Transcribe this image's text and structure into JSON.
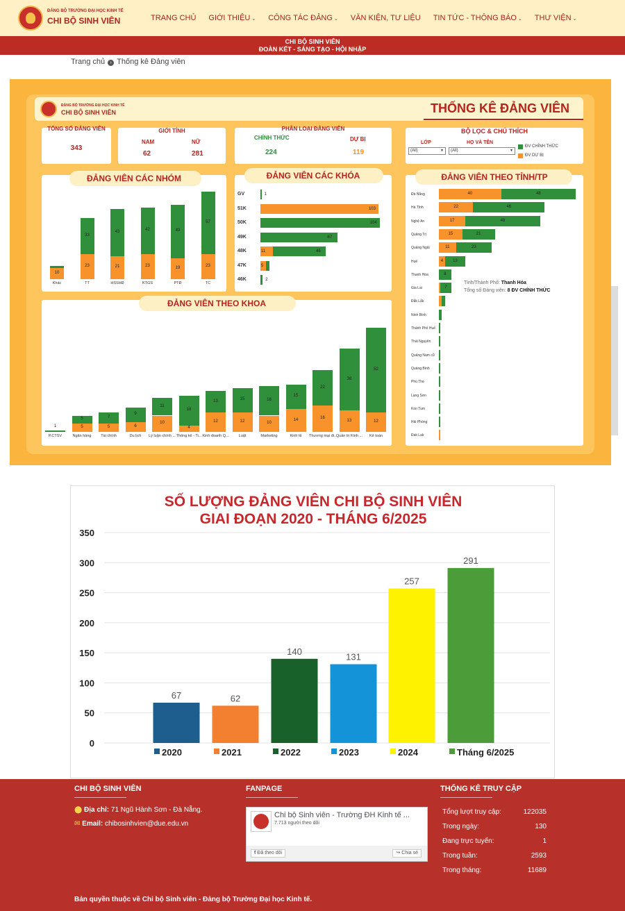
{
  "header": {
    "logo_small": "ĐẢNG BỘ TRƯỜNG ĐẠI HỌC KINH TẾ",
    "logo_big": "CHI BỘ SINH VIÊN",
    "nav": [
      "TRANG CHỦ",
      "GIỚI THIỆU",
      "CÔNG TÁC ĐẢNG",
      "VĂN KIỆN, TƯ LIỆU",
      "TIN TỨC - THÔNG BÁO",
      "THƯ VIỆN"
    ],
    "nav_dropdown": [
      false,
      true,
      true,
      false,
      true,
      true
    ],
    "ribbon_line1": "CHI BỘ SINH VIÊN",
    "ribbon_line2": "ĐOÀN KẾT - SÁNG TẠO - HỘI NHẬP"
  },
  "breadcrumb": {
    "home": "Trang chủ",
    "current": "Thống kê Đảng viên"
  },
  "dashboard": {
    "logo_small": "ĐẢNG BỘ TRƯỜNG ĐẠI HỌC KINH TẾ",
    "logo_big": "CHI BỘ SINH VIÊN",
    "title": "THỐNG KÊ ĐẢNG VIÊN",
    "total_label": "TỔNG SỐ ĐẢNG VIÊN",
    "total_value": "343",
    "gender_label": "GIỚI TÍNH",
    "male_label": "NAM",
    "male_value": "62",
    "female_label": "NỮ",
    "female_value": "281",
    "type_label": "PHÂN LOẠI ĐẢNG VIÊN",
    "official_label": "CHÍNH THỨC",
    "official_value": "224",
    "probation_label": "DỰ BỊ",
    "probation_value": "119",
    "filter_title": "BỘ LỌC & CHÚ THÍCH",
    "filter_class_label": "LỚP",
    "filter_name_label": "HỌ VÀ TÊN",
    "filter_all": "(All)",
    "legend_official": "ĐV CHÍNH THỨC",
    "legend_probation": "ĐV DỰ BỊ",
    "groups_title": "ĐẢNG VIÊN CÁC NHÓM",
    "courses_title": "ĐẢNG VIÊN CÁC KHÓA",
    "province_title": "ĐẢNG VIÊN THEO TỈNH/TP",
    "faculty_title": "ĐẢNG VIÊN THEO KHOA",
    "tooltip_line1_label": "Tỉnh/Thành Phố:",
    "tooltip_line1_value": "Thanh Hóa",
    "tooltip_line2_label": "Tổng số Đảng viên:",
    "tooltip_line2_value": "8 ĐV CHÍNH THỨC",
    "colors": {
      "official": "#2f8f3a",
      "probation": "#f8922a",
      "title": "#b5241f"
    }
  },
  "chart_data": [
    {
      "type": "bar",
      "title": "ĐẢNG VIÊN CÁC NHÓM",
      "categories": [
        "Khác",
        "TT",
        "HSSHĐ",
        "KTGS",
        "PTĐ",
        "TC"
      ],
      "series": [
        {
          "name": "ĐV DỰ BỊ",
          "values": [
            10,
            23,
            21,
            23,
            19,
            23
          ]
        },
        {
          "name": "ĐV CHÍNH THỨC",
          "values": [
            2,
            33,
            43,
            42,
            49,
            57
          ]
        }
      ]
    },
    {
      "type": "bar",
      "title": "ĐẢNG VIÊN CÁC KHÓA",
      "categories": [
        "GV",
        "51K",
        "50K",
        "49K",
        "48K",
        "47K",
        "46K"
      ],
      "series": [
        {
          "name": "ĐV DỰ BỊ",
          "values": [
            0,
            103,
            0,
            0,
            11,
            5,
            0
          ]
        },
        {
          "name": "ĐV CHÍNH THỨC",
          "values": [
            1,
            0,
            104,
            67,
            46,
            3,
            2
          ]
        }
      ],
      "labels": [
        [
          "",
          "1"
        ],
        [
          "103",
          ""
        ],
        [
          "",
          "104"
        ],
        [
          "",
          "67"
        ],
        [
          "11",
          "46"
        ],
        [
          "5",
          ""
        ],
        [
          "",
          "2"
        ]
      ]
    },
    {
      "type": "bar",
      "title": "ĐẢNG VIÊN THEO TỈNH/TP",
      "categories": [
        "Đà Nẵng",
        "Hà Tĩnh",
        "Nghệ An",
        "Quảng Trị",
        "Quảng Ngãi",
        "Huế",
        "Thanh Hóa",
        "Gia Lai",
        "Đắk Lắk",
        "Ninh Bình",
        "Thành Phố Huế",
        "Thái Nguyên",
        "Quảng Nam cũ",
        "Quảng Bình",
        "Phú Thọ",
        "Lạng Sơn",
        "Kon Tum",
        "Hải Phòng",
        "Đak Lak"
      ],
      "series": [
        {
          "name": "ĐV DỰ BỊ",
          "values": [
            40,
            22,
            17,
            15,
            11,
            4,
            0,
            1,
            2,
            0,
            0,
            0,
            0,
            0,
            0,
            0,
            0,
            0,
            1
          ]
        },
        {
          "name": "ĐV CHÍNH THỨC",
          "values": [
            48,
            46,
            48,
            21,
            23,
            13,
            8,
            7,
            2,
            2,
            1,
            1,
            1,
            1,
            1,
            1,
            1,
            1,
            0
          ]
        }
      ],
      "labels": [
        [
          "40",
          "48"
        ],
        [
          "22",
          "46"
        ],
        [
          "17",
          "48"
        ],
        [
          "15",
          "21"
        ],
        [
          "11",
          "23"
        ],
        [
          "4",
          "13"
        ],
        [
          "",
          "8"
        ],
        [
          "",
          "7"
        ],
        [
          "",
          ""
        ],
        [
          "",
          ""
        ],
        [
          "",
          ""
        ],
        [
          "",
          ""
        ],
        [
          "",
          ""
        ],
        [
          "",
          ""
        ],
        [
          "",
          ""
        ],
        [
          "",
          ""
        ],
        [
          "",
          ""
        ],
        [
          "",
          ""
        ],
        [
          "",
          ""
        ]
      ]
    },
    {
      "type": "bar",
      "title": "ĐẢNG VIÊN THEO KHOA",
      "categories": [
        "P.CTSV",
        "Ngân hàng",
        "Tài chính",
        "Du lịch",
        "Lý luận chính ...",
        "Thống kê - Ti...",
        "Kinh doanh Q...",
        "Luật",
        "Marketing",
        "Kinh tế",
        "Thương mại đi...",
        "Quản trị Kinh ...",
        "Kế toán"
      ],
      "series": [
        {
          "name": "ĐV DỰ BỊ",
          "values": [
            0,
            5,
            5,
            6,
            10,
            4,
            12,
            12,
            10,
            14,
            16,
            13,
            12
          ]
        },
        {
          "name": "ĐV CHÍNH THỨC",
          "values": [
            1,
            5,
            7,
            9,
            11,
            18,
            13,
            15,
            18,
            15,
            22,
            38,
            52
          ]
        }
      ]
    },
    {
      "type": "bar",
      "title": "SỐ LƯỢNG ĐẢNG VIÊN CHI BỘ SINH VIÊN",
      "subtitle": "GIAI ĐOẠN 2020 - THÁNG 6/2025",
      "categories": [
        "2020",
        "2021",
        "2022",
        "2023",
        "2024",
        "Tháng 6/2025"
      ],
      "values": [
        67,
        62,
        140,
        131,
        257,
        291
      ],
      "colors": [
        "#1d5e8f",
        "#f28030",
        "#18612a",
        "#1593d9",
        "#fff200",
        "#4c9c39"
      ],
      "ylim": [
        0,
        350
      ],
      "yticks": [
        "0",
        "50",
        "100",
        "150",
        "200",
        "250",
        "300",
        "350"
      ]
    }
  ],
  "footer": {
    "col1_title": "CHI BỘ SINH VIÊN",
    "address_label": "Địa chỉ:",
    "address_value": "71 Ngũ Hành Sơn - Đà Nẵng.",
    "email_label": "Email:",
    "email_value": "chibosinhvien@due.edu.vn",
    "col2_title": "FANPAGE",
    "fb_name": "Chi bộ Sinh viên - Trường ĐH Kinh tế ...",
    "fb_followers": "7.713 người theo dõi",
    "fb_followed": "Đã theo dõi",
    "fb_share": "Chia sẻ",
    "col3_title": "THỐNG KÊ TRUY CẬP",
    "stats": [
      {
        "label": "Tổng lượt truy cập:",
        "value": "122035"
      },
      {
        "label": "Trong ngày:",
        "value": "130"
      },
      {
        "label": "Đang trực tuyến:",
        "value": "1"
      },
      {
        "label": "Trong tuần:",
        "value": "2593"
      },
      {
        "label": "Trong tháng:",
        "value": "11689"
      }
    ],
    "copyright": "Bản quyền thuộc về Chi bộ Sinh viên - Đảng bộ Trường Đại học Kinh tế."
  }
}
